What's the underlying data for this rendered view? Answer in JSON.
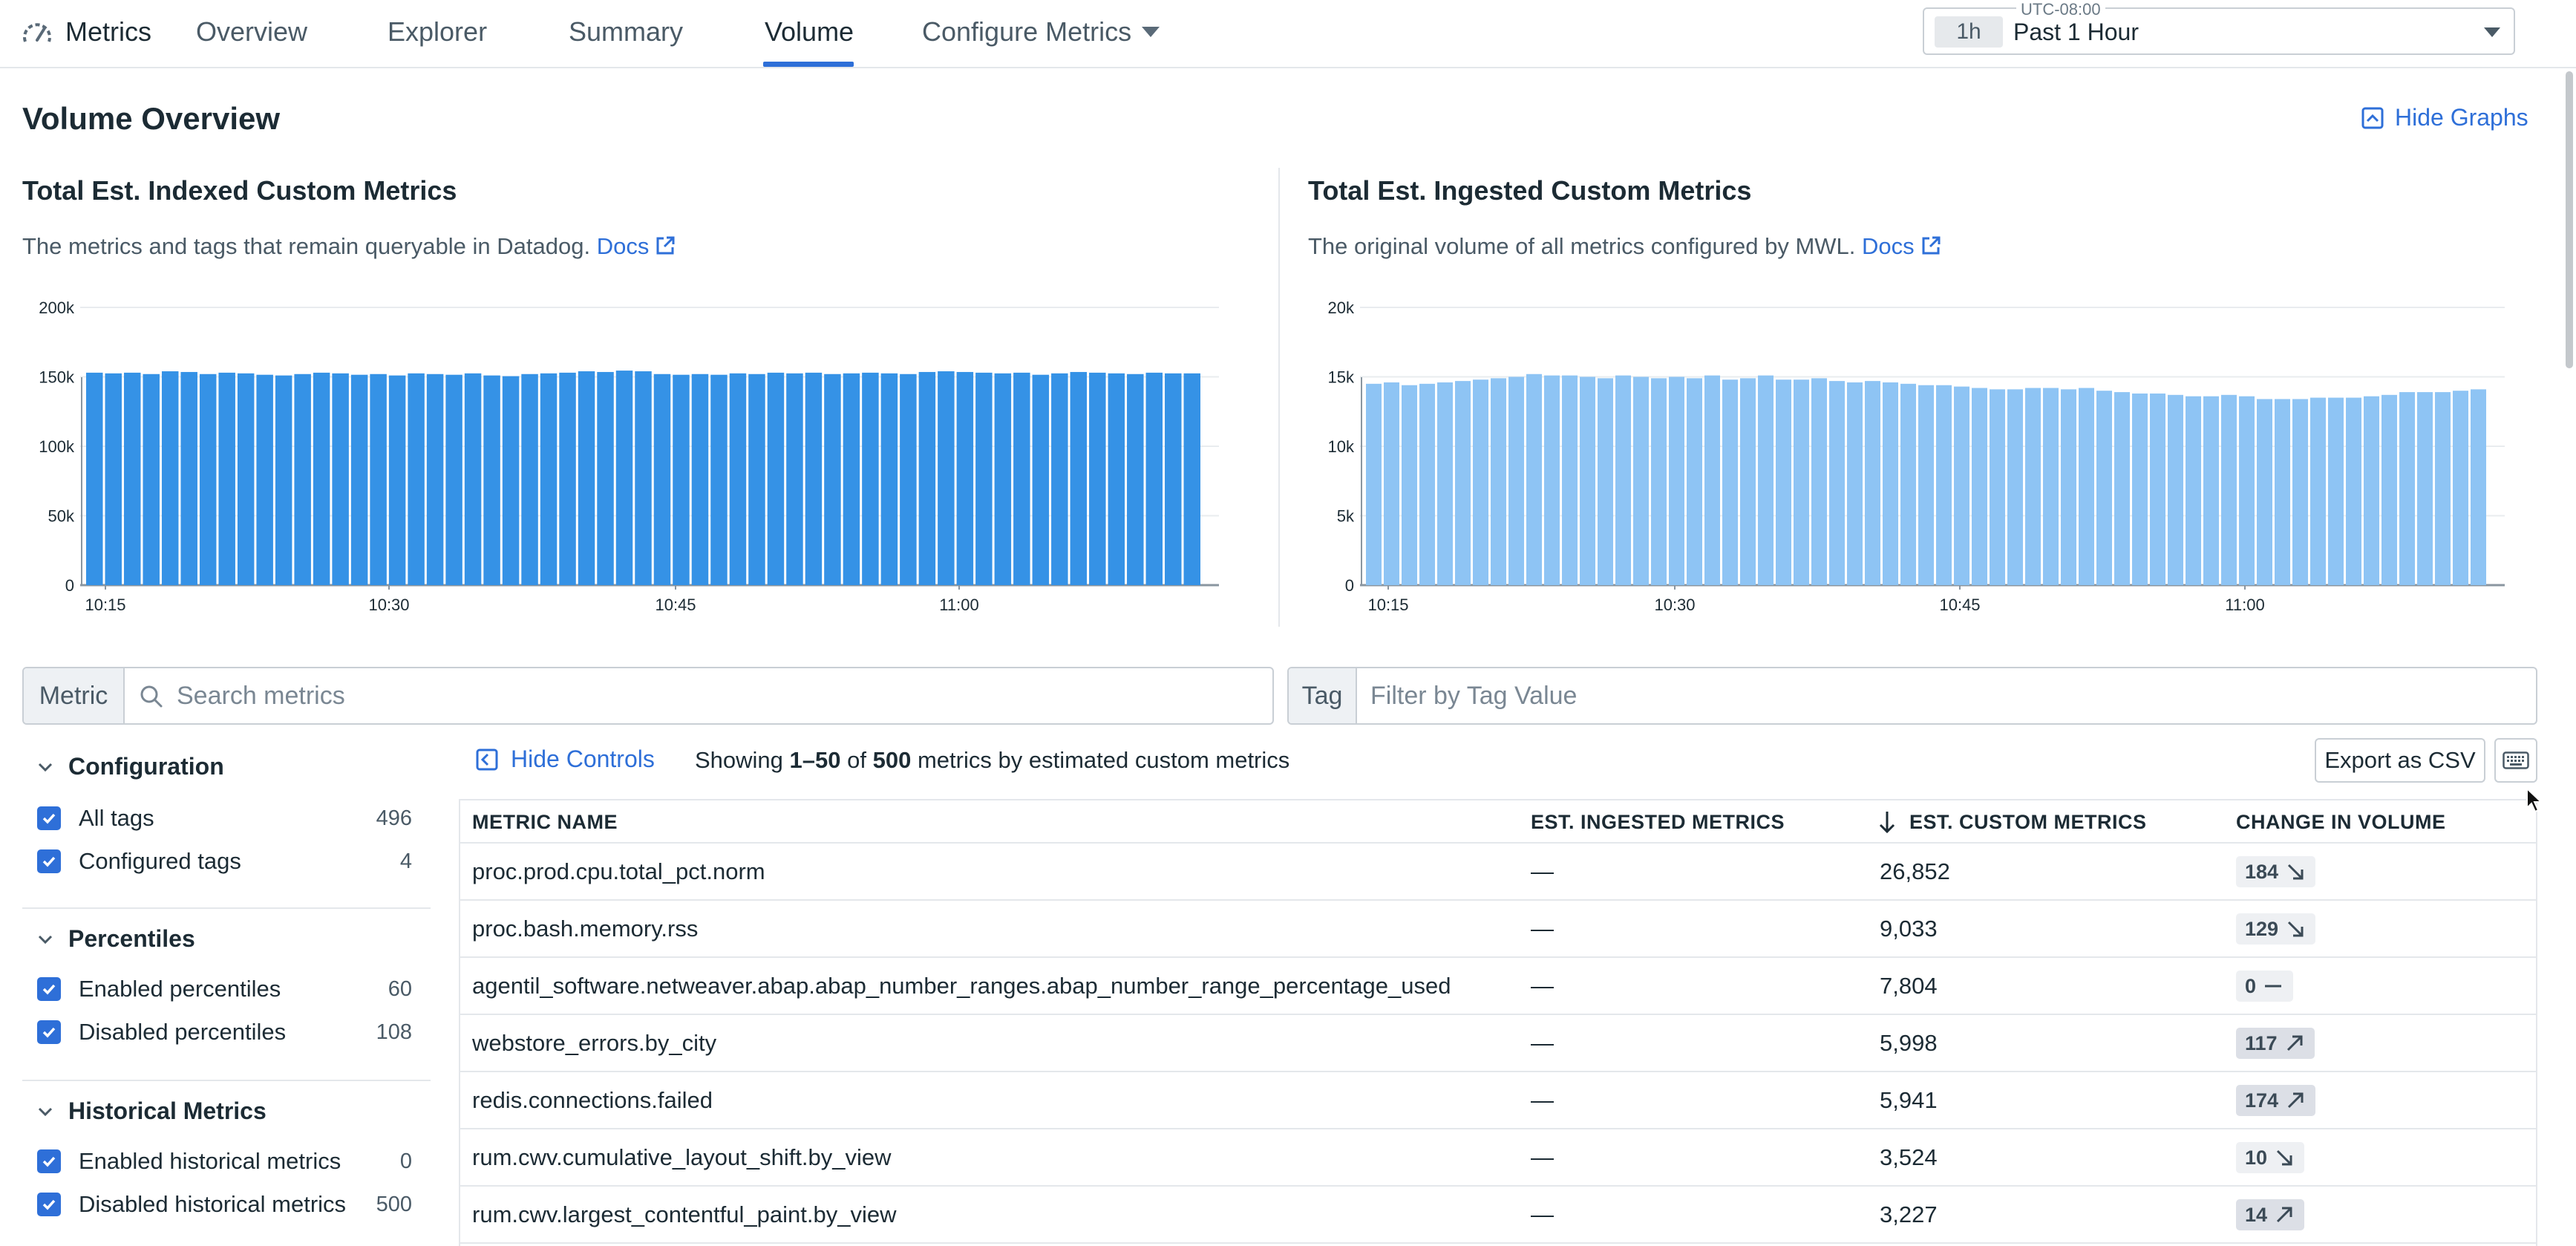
{
  "nav": {
    "app_title": "Metrics",
    "tabs": [
      {
        "label": "Overview"
      },
      {
        "label": "Explorer"
      },
      {
        "label": "Summary"
      },
      {
        "label": "Volume"
      },
      {
        "label": "Configure Metrics"
      }
    ],
    "active_tab": "Volume",
    "timezone": "UTC-08:00",
    "time_badge": "1h",
    "time_value": "Past 1 Hour"
  },
  "overview": {
    "title": "Volume Overview",
    "hide_graphs_label": "Hide Graphs",
    "docs_label": "Docs",
    "indexed": {
      "title": "Total Est. Indexed Custom Metrics",
      "description": "The metrics and tags that remain queryable in Datadog."
    },
    "ingested": {
      "title": "Total Est. Ingested Custom Metrics",
      "description": "The original volume of all metrics configured by MWL."
    }
  },
  "chart_data": [
    {
      "type": "bar",
      "title": "Total Est. Indexed Custom Metrics",
      "x_tick_labels": [
        "10:15",
        "10:30",
        "10:45",
        "11:00"
      ],
      "y_tick_labels": [
        "0",
        "50k",
        "100k",
        "150k",
        "200k"
      ],
      "ylim": [
        0,
        200000
      ],
      "color": "#3592e6",
      "values": [
        153000,
        152500,
        153000,
        152000,
        154000,
        153500,
        152000,
        153000,
        152500,
        151500,
        151000,
        152000,
        153000,
        152500,
        151500,
        152000,
        151000,
        152500,
        152000,
        151500,
        152500,
        151000,
        150500,
        152000,
        152500,
        153000,
        154000,
        153500,
        154500,
        154000,
        152000,
        151500,
        152000,
        151500,
        152500,
        152000,
        153000,
        152500,
        153000,
        152000,
        152500,
        153000,
        152500,
        152000,
        153500,
        154000,
        153500,
        153000,
        152500,
        153000,
        151500,
        152500,
        153500,
        153000,
        152500,
        152000,
        153000,
        152500,
        152500
      ]
    },
    {
      "type": "bar",
      "title": "Total Est. Ingested Custom Metrics",
      "x_tick_labels": [
        "10:15",
        "10:30",
        "10:45",
        "11:00"
      ],
      "y_tick_labels": [
        "0",
        "5k",
        "10k",
        "15k",
        "20k"
      ],
      "ylim": [
        0,
        20000
      ],
      "color": "#8ec4f4",
      "values": [
        14500,
        14600,
        14400,
        14500,
        14600,
        14700,
        14800,
        14900,
        15000,
        15200,
        15100,
        15100,
        15000,
        14900,
        15100,
        15000,
        14900,
        15000,
        14900,
        15100,
        14800,
        14900,
        15100,
        14800,
        14800,
        14900,
        14700,
        14600,
        14700,
        14600,
        14500,
        14400,
        14400,
        14300,
        14200,
        14100,
        14100,
        14200,
        14200,
        14100,
        14200,
        14000,
        13900,
        13800,
        13800,
        13700,
        13600,
        13600,
        13700,
        13600,
        13400,
        13400,
        13400,
        13500,
        13500,
        13500,
        13600,
        13700,
        13900,
        13900,
        13900,
        14000,
        14100
      ]
    }
  ],
  "filters": {
    "metric_label": "Metric",
    "metric_placeholder": "Search metrics",
    "tag_label": "Tag",
    "tag_placeholder": "Filter by Tag Value"
  },
  "facets": {
    "configuration": {
      "title": "Configuration",
      "items": [
        {
          "label": "All tags",
          "count": "496"
        },
        {
          "label": "Configured tags",
          "count": "4"
        }
      ]
    },
    "percentiles": {
      "title": "Percentiles",
      "items": [
        {
          "label": "Enabled percentiles",
          "count": "60"
        },
        {
          "label": "Disabled percentiles",
          "count": "108"
        }
      ]
    },
    "historical": {
      "title": "Historical Metrics",
      "items": [
        {
          "label": "Enabled historical metrics",
          "count": "0"
        },
        {
          "label": "Disabled historical metrics",
          "count": "500"
        }
      ]
    }
  },
  "table_controls": {
    "hide_controls_label": "Hide Controls",
    "showing_prefix": "Showing",
    "range": "1–50",
    "of": "of",
    "total": "500",
    "suffix": "metrics by estimated custom metrics",
    "export_label": "Export as CSV",
    "keyboard_icon": "keyboard-icon"
  },
  "table": {
    "columns": [
      "METRIC NAME",
      "EST. INGESTED METRICS",
      "EST. CUSTOM METRICS",
      "CHANGE IN VOLUME"
    ],
    "rows": [
      {
        "name": "proc.prod.cpu.total_pct.norm",
        "ingested": "—",
        "custom": "26,852",
        "change": "184",
        "trend": "down"
      },
      {
        "name": "proc.bash.memory.rss",
        "ingested": "—",
        "custom": "9,033",
        "change": "129",
        "trend": "down"
      },
      {
        "name": "agentil_software.netweaver.abap.abap_number_ranges.abap_number_range_percentage_used",
        "ingested": "—",
        "custom": "7,804",
        "change": "0",
        "trend": "flat"
      },
      {
        "name": "webstore_errors.by_city",
        "ingested": "—",
        "custom": "5,998",
        "change": "117",
        "trend": "up"
      },
      {
        "name": "redis.connections.failed",
        "ingested": "—",
        "custom": "5,941",
        "change": "174",
        "trend": "up"
      },
      {
        "name": "rum.cwv.cumulative_layout_shift.by_view",
        "ingested": "—",
        "custom": "3,524",
        "change": "10",
        "trend": "down"
      },
      {
        "name": "rum.cwv.largest_contentful_paint.by_view",
        "ingested": "—",
        "custom": "3,227",
        "change": "14",
        "trend": "up"
      }
    ]
  }
}
